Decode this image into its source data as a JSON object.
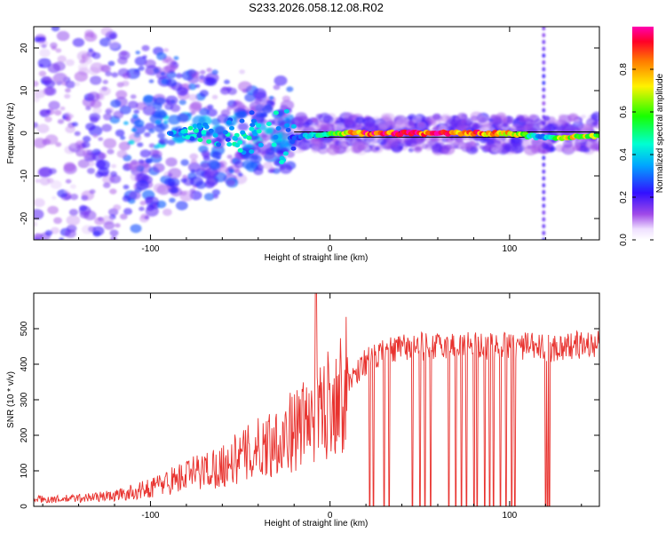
{
  "title": "S233.2026.058.12.08.R02",
  "chart_data": [
    {
      "type": "heatmap",
      "title": "S233.2026.058.12.08.R02",
      "xlabel": "Height of straight line (km)",
      "ylabel": "Frequency (Hz)",
      "xlim": [
        -165,
        150
      ],
      "ylim": [
        -25,
        25
      ],
      "xticks": [
        -100,
        0,
        100
      ],
      "yticks": [
        -20,
        -10,
        0,
        10,
        20
      ],
      "xtick_labels": [
        "-100",
        "0",
        "100"
      ],
      "ytick_labels": [
        "-20",
        "-10",
        "0",
        "10",
        "20"
      ],
      "colorbar": {
        "label": "Normalized spectral amplitude",
        "range": [
          0,
          1
        ],
        "ticks": [
          0.0,
          0.2,
          0.4,
          0.6,
          0.8
        ],
        "tick_labels": [
          "0.0",
          "0.2",
          "0.4",
          "0.6",
          "0.8"
        ]
      },
      "signal_track": {
        "description_points_x": [
          -20,
          0,
          20,
          40,
          60,
          80,
          100,
          118,
          130,
          150
        ],
        "frequency_hz": [
          -1,
          0,
          0,
          0,
          0,
          0,
          0,
          -1,
          -1,
          -0.5
        ],
        "amplitude": [
          0.25,
          0.55,
          0.9,
          0.95,
          0.9,
          0.85,
          0.8,
          0.3,
          0.75,
          0.6
        ]
      },
      "vertical_artifact_x": 119
    },
    {
      "type": "line",
      "xlabel": "Height of straight line (km)",
      "ylabel": "SNR (10 * v/v)",
      "xlim": [
        -165,
        150
      ],
      "ylim": [
        0,
        600
      ],
      "xticks": [
        -100,
        0,
        100
      ],
      "yticks": [
        0,
        100,
        200,
        300,
        400,
        500
      ],
      "xtick_labels": [
        "-100",
        "0",
        "100"
      ],
      "ytick_labels": [
        "0",
        "100",
        "200",
        "300",
        "400",
        "500"
      ],
      "series": [
        {
          "name": "SNR",
          "color": "#e8322e",
          "x": [
            -165,
            -150,
            -135,
            -120,
            -105,
            -90,
            -75,
            -60,
            -45,
            -35,
            -25,
            -15,
            -8,
            0,
            10,
            20,
            30,
            40,
            50,
            60,
            70,
            80,
            90,
            100,
            110,
            120,
            130,
            140,
            150
          ],
          "values": [
            20,
            20,
            25,
            30,
            45,
            70,
            95,
            115,
            150,
            175,
            200,
            230,
            250,
            300,
            350,
            410,
            430,
            445,
            450,
            450,
            455,
            455,
            450,
            455,
            450,
            445,
            450,
            455,
            455
          ]
        }
      ],
      "dropouts_x": [
        22,
        24,
        30,
        33,
        46,
        50,
        53,
        56,
        66,
        70,
        73,
        76,
        80,
        82,
        86,
        89,
        91,
        95,
        98,
        101,
        103,
        120,
        121,
        122
      ],
      "spike_x": -8,
      "spike_value": 600
    }
  ]
}
